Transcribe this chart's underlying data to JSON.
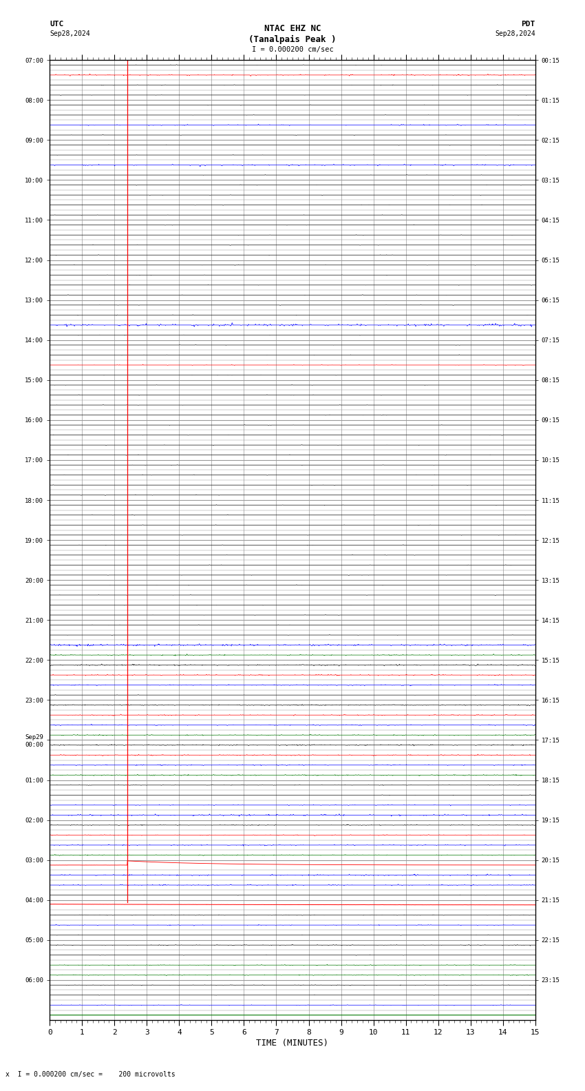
{
  "title_line1": "NTAC EHZ NC",
  "title_line2": "(Tanalpais Peak )",
  "title_scale": "I = 0.000200 cm/sec",
  "top_left_label": "UTC",
  "top_left_date": "Sep28,2024",
  "top_right_label": "PDT",
  "top_right_date": "Sep28,2024",
  "bottom_label": "TIME (MINUTES)",
  "bottom_note": "x  I = 0.000200 cm/sec =    200 microvolts",
  "x_min": 0,
  "x_max": 15,
  "bg_color": "#ffffff",
  "grid_color": "#999999",
  "fig_width": 8.5,
  "fig_height": 15.84,
  "n_major_rows": 24,
  "sub_rows": 4,
  "utc_labels": [
    "07:00",
    "08:00",
    "09:00",
    "10:00",
    "11:00",
    "12:00",
    "13:00",
    "14:00",
    "15:00",
    "16:00",
    "17:00",
    "18:00",
    "19:00",
    "20:00",
    "21:00",
    "22:00",
    "23:00",
    "Sep29\n00:00",
    "01:00",
    "02:00",
    "03:00",
    "04:00",
    "05:00",
    "06:00"
  ],
  "pdt_labels": [
    "00:15",
    "01:15",
    "02:15",
    "03:15",
    "04:15",
    "05:15",
    "06:15",
    "07:15",
    "08:15",
    "09:15",
    "10:15",
    "11:15",
    "12:15",
    "13:15",
    "14:15",
    "15:15",
    "16:15",
    "17:15",
    "18:15",
    "19:15",
    "20:15",
    "21:15",
    "22:15",
    "23:15"
  ]
}
